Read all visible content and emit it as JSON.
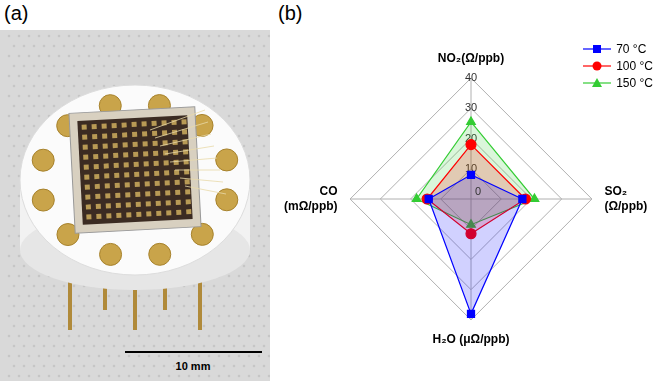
{
  "panel_labels": [
    "(a)",
    "(b)"
  ],
  "scale_bar": "10 mm",
  "chart_data": {
    "type": "radar",
    "categories": [
      "NO₂(Ω/ppb)",
      "SO₂ (Ω/ppb)",
      "H₂O (μΩ/ppb)",
      "CO (mΩ/ppb)"
    ],
    "series": [
      {
        "name": "70 °C",
        "color": "#0000ff",
        "marker": "square",
        "line_style": "solid",
        "values": [
          8,
          17,
          38,
          14
        ]
      },
      {
        "name": "100 °C",
        "color": "#ff0000",
        "marker": "circle",
        "line_style": "solid",
        "values": [
          18,
          18,
          11.5,
          14.5
        ]
      },
      {
        "name": "150 °C",
        "color": "#33cc33",
        "marker": "triangle",
        "line_style": "solid",
        "values": [
          25.5,
          21,
          8.5,
          18
        ]
      }
    ],
    "ylim": [
      0,
      40
    ],
    "yticks": [
      0,
      10,
      20,
      30,
      40
    ],
    "grid": true,
    "legend": "top-right"
  }
}
